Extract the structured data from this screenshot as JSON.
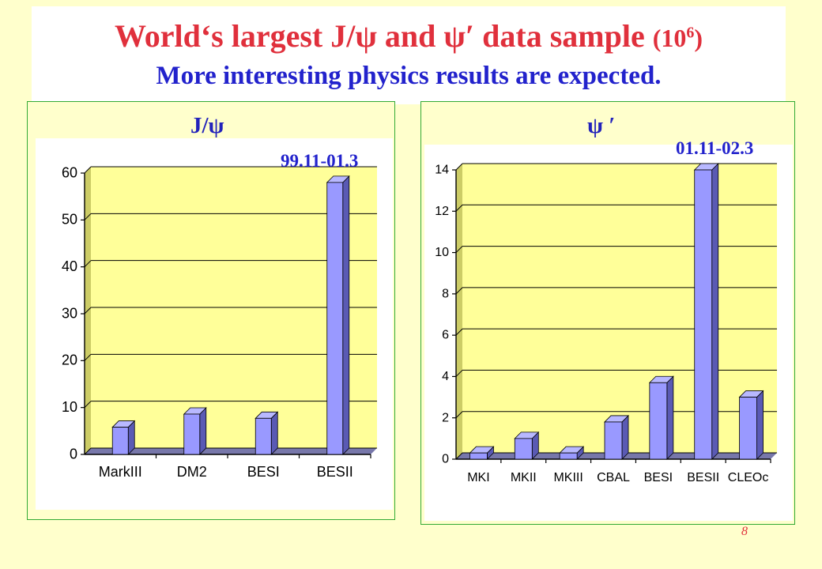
{
  "slide": {
    "title_part1": "World‘s largest J/ψ and ψ′ data sample",
    "title_part2": "(10",
    "title_exp": "6",
    "title_part3": ")",
    "subtitle": "More interesting physics results are expected.",
    "page_number": "8"
  },
  "colors": {
    "title": "#e0303c",
    "subtitle": "#2222cc",
    "bar_front": "#9999ff",
    "bar_side": "#5a5ab4",
    "plot_bg": "#ffff99",
    "panel_border": "#33aa33"
  },
  "chart_data": [
    {
      "type": "bar",
      "panel_label": "J/ψ",
      "period_annotation": "99.11-01.3",
      "categories": [
        "MarkIII",
        "DM2",
        "BESI",
        "BESII"
      ],
      "values": [
        5.8,
        8.6,
        7.7,
        58
      ],
      "yticks": [
        "0",
        "10",
        "20",
        "30",
        "40",
        "50",
        "60"
      ],
      "ylim": [
        0,
        60
      ],
      "grid": true
    },
    {
      "type": "bar",
      "panel_label": "ψ ′",
      "period_annotation": "01.11-02.3",
      "categories": [
        "MKI",
        "MKII",
        "MKIII",
        "CBAL",
        "BESI",
        "BESII",
        "CLEOc"
      ],
      "values": [
        0.3,
        1.0,
        0.3,
        1.8,
        3.7,
        14,
        3.0
      ],
      "yticks": [
        "0",
        "2",
        "4",
        "6",
        "8",
        "10",
        "12",
        "14"
      ],
      "ylim": [
        0,
        14
      ],
      "grid": true
    }
  ]
}
